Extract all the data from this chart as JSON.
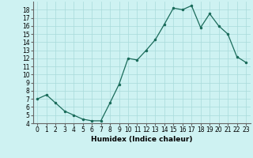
{
  "x": [
    0,
    1,
    2,
    3,
    4,
    5,
    6,
    7,
    8,
    9,
    10,
    11,
    12,
    13,
    14,
    15,
    16,
    17,
    18,
    19,
    20,
    21,
    22,
    23
  ],
  "y": [
    7.0,
    7.5,
    6.5,
    5.5,
    5.0,
    4.5,
    4.3,
    4.3,
    6.5,
    8.8,
    12.0,
    11.8,
    13.0,
    14.3,
    16.2,
    18.2,
    18.0,
    18.5,
    15.8,
    17.5,
    16.0,
    15.0,
    12.2,
    11.5
  ],
  "xlabel": "Humidex (Indice chaleur)",
  "xlim": [
    -0.5,
    23.5
  ],
  "ylim": [
    4,
    19
  ],
  "yticks": [
    4,
    5,
    6,
    7,
    8,
    9,
    10,
    11,
    12,
    13,
    14,
    15,
    16,
    17,
    18
  ],
  "xticks": [
    0,
    1,
    2,
    3,
    4,
    5,
    6,
    7,
    8,
    9,
    10,
    11,
    12,
    13,
    14,
    15,
    16,
    17,
    18,
    19,
    20,
    21,
    22,
    23
  ],
  "line_color": "#1a6b5a",
  "marker_color": "#1a6b5a",
  "bg_color": "#cef2f2",
  "grid_color": "#a8dada",
  "label_fontsize": 6.5,
  "tick_fontsize": 5.5
}
